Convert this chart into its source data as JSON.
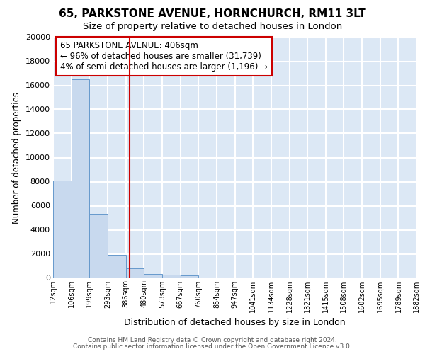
{
  "title1": "65, PARKSTONE AVENUE, HORNCHURCH, RM11 3LT",
  "title2": "Size of property relative to detached houses in London",
  "xlabel": "Distribution of detached houses by size in London",
  "ylabel": "Number of detached properties",
  "footnote1": "Contains HM Land Registry data © Crown copyright and database right 2024.",
  "footnote2": "Contains public sector information licensed under the Open Government Licence v3.0.",
  "annotation_line1": "65 PARKSTONE AVENUE: 406sqm",
  "annotation_line2": "← 96% of detached houses are smaller (31,739)",
  "annotation_line3": "4% of semi-detached houses are larger (1,196) →",
  "bar_color": "#c8d9ee",
  "bar_edge_color": "#6699cc",
  "redline_x": 406,
  "redline_color": "#cc0000",
  "plot_bg_color": "#dce8f5",
  "grid_color": "#ffffff",
  "bin_edges": [
    12,
    106,
    199,
    293,
    386,
    480,
    573,
    667,
    760,
    854,
    947,
    1041,
    1134,
    1228,
    1321,
    1415,
    1508,
    1602,
    1695,
    1789,
    1882
  ],
  "bin_counts": [
    8100,
    16500,
    5300,
    1900,
    800,
    350,
    250,
    200,
    0,
    0,
    0,
    0,
    0,
    0,
    0,
    0,
    0,
    0,
    0,
    0
  ],
  "ylim": [
    0,
    20000
  ],
  "yticks": [
    0,
    2000,
    4000,
    6000,
    8000,
    10000,
    12000,
    14000,
    16000,
    18000,
    20000
  ]
}
